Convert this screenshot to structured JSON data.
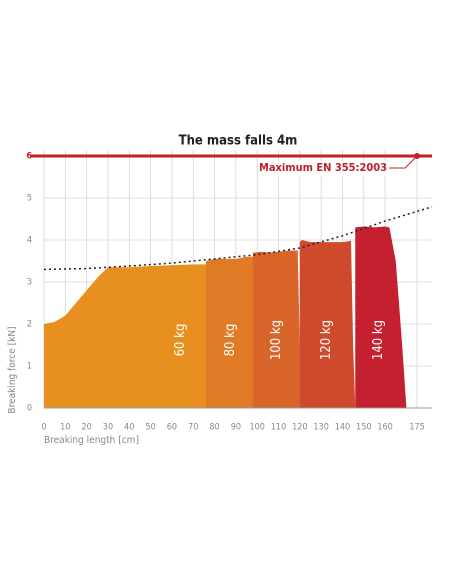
{
  "chart_data": {
    "type": "area",
    "title": "The mass falls 4m",
    "x_label": "Breaking length [cm]",
    "y_label": "Breaking force [kN]",
    "xlim": [
      0,
      182
    ],
    "ylim": [
      0,
      6
    ],
    "xticks": [
      0,
      10,
      20,
      30,
      40,
      50,
      60,
      70,
      80,
      90,
      100,
      110,
      120,
      130,
      140,
      150,
      160,
      175
    ],
    "yticks": [
      0,
      1,
      2,
      3,
      4,
      5,
      6
    ],
    "grid": true,
    "series": [
      {
        "name": "60 kg",
        "color": "#e8901f",
        "x": [
          0,
          5,
          10,
          15,
          20,
          25,
          30,
          40,
          50,
          60,
          70,
          76,
          79,
          80
        ],
        "values": [
          2.0,
          2.05,
          2.2,
          2.5,
          2.8,
          3.1,
          3.35,
          3.35,
          3.38,
          3.4,
          3.42,
          3.42,
          1.5,
          0
        ]
      },
      {
        "name": "80 kg",
        "color": "#e07a25",
        "x": [
          76,
          80,
          85,
          90,
          95,
          98,
          99,
          100
        ],
        "values": [
          3.5,
          3.55,
          3.55,
          3.55,
          3.6,
          3.6,
          1.5,
          0
        ]
      },
      {
        "name": "100 kg",
        "color": "#d9652a",
        "x": [
          98,
          102,
          106,
          110,
          115,
          119,
          120,
          121
        ],
        "values": [
          3.7,
          3.72,
          3.7,
          3.72,
          3.75,
          3.75,
          1.5,
          0
        ]
      },
      {
        "name": "120 kg",
        "color": "#cf4a2c",
        "x": [
          120,
          121,
          125,
          130,
          135,
          140,
          144,
          145,
          146
        ],
        "values": [
          3.95,
          4.0,
          3.95,
          3.95,
          3.95,
          3.95,
          3.98,
          1.5,
          0
        ]
      },
      {
        "name": "140 kg",
        "color": "#c4202f",
        "x": [
          146,
          150,
          155,
          160,
          162,
          165,
          168,
          170
        ],
        "values": [
          4.3,
          4.32,
          4.3,
          4.32,
          4.3,
          3.5,
          1.5,
          0
        ]
      }
    ],
    "trend_line": {
      "x": [
        0,
        20,
        40,
        60,
        80,
        100,
        120,
        140,
        160,
        182
      ],
      "values": [
        3.3,
        3.32,
        3.38,
        3.45,
        3.55,
        3.65,
        3.81,
        4.1,
        4.45,
        4.79
      ]
    },
    "reference_line": {
      "value": 6,
      "x": 175,
      "label": "Maximum EN 355:2003",
      "color": "#c0202a"
    }
  }
}
